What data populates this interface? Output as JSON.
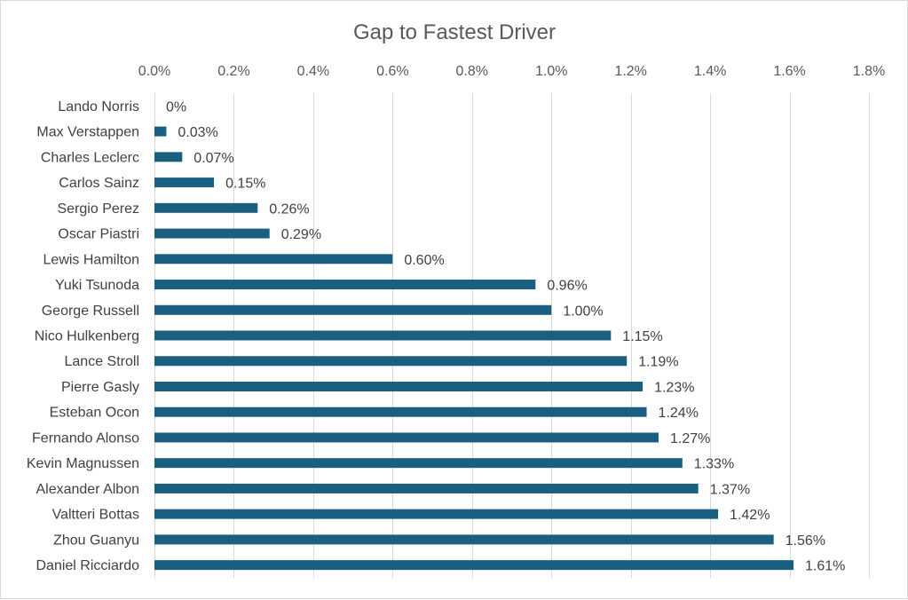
{
  "chart_data": {
    "type": "bar",
    "orientation": "horizontal",
    "title": "Gap to Fastest Driver",
    "xlabel": "",
    "ylabel": "",
    "xlim": [
      0,
      1.8
    ],
    "x_axis_position": "top",
    "grid": true,
    "legend": "none",
    "bar_color": "#1a5f80",
    "tick_labels": [
      "0.0%",
      "0.2%",
      "0.4%",
      "0.6%",
      "0.8%",
      "1.0%",
      "1.2%",
      "1.4%",
      "1.6%",
      "1.8%"
    ],
    "tick_values": [
      0,
      0.2,
      0.4,
      0.6,
      0.8,
      1.0,
      1.2,
      1.4,
      1.6,
      1.8
    ],
    "categories": [
      "Lando Norris",
      "Max Verstappen",
      "Charles Leclerc",
      "Carlos Sainz",
      "Sergio Perez",
      "Oscar Piastri",
      "Lewis Hamilton",
      "Yuki Tsunoda",
      "George Russell",
      "Nico Hulkenberg",
      "Lance Stroll",
      "Pierre Gasly",
      "Esteban Ocon",
      "Fernando Alonso",
      "Kevin Magnussen",
      "Alexander Albon",
      "Valtteri Bottas",
      "Zhou Guanyu",
      "Daniel Ricciardo"
    ],
    "values": [
      0,
      0.03,
      0.07,
      0.15,
      0.26,
      0.29,
      0.6,
      0.96,
      1.0,
      1.15,
      1.19,
      1.23,
      1.24,
      1.27,
      1.33,
      1.37,
      1.42,
      1.56,
      1.61
    ],
    "data_labels": [
      "0%",
      "0.03%",
      "0.07%",
      "0.15%",
      "0.26%",
      "0.29%",
      "0.60%",
      "0.96%",
      "1.00%",
      "1.15%",
      "1.19%",
      "1.23%",
      "1.24%",
      "1.27%",
      "1.33%",
      "1.37%",
      "1.42%",
      "1.56%",
      "1.61%"
    ]
  }
}
